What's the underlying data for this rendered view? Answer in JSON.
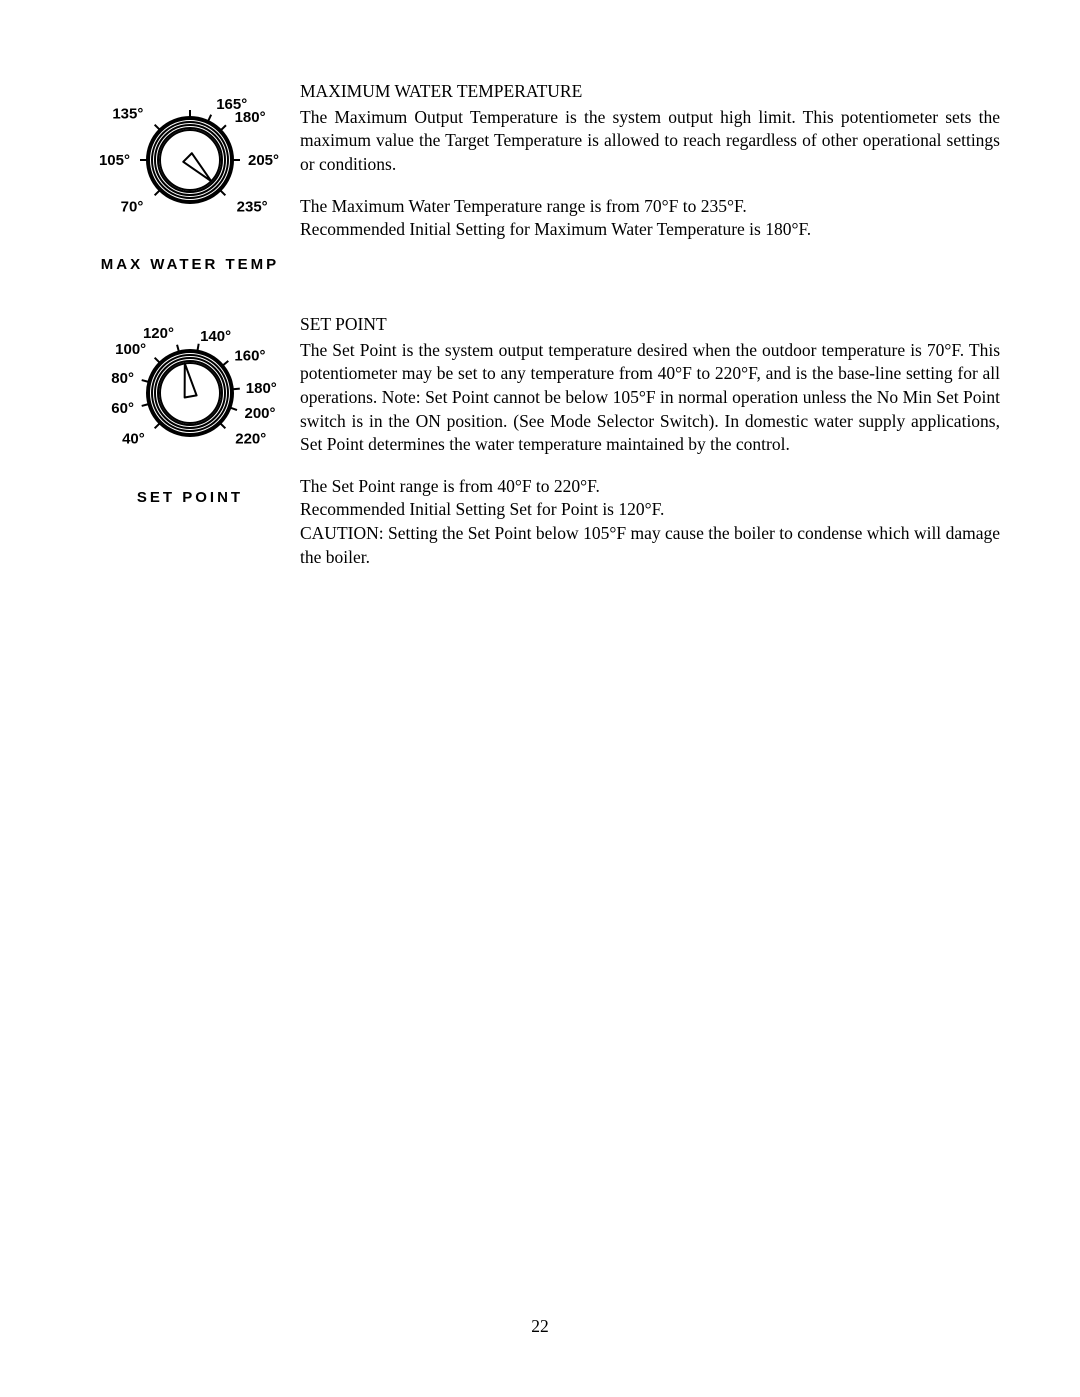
{
  "page_number": "22",
  "dial_style": {
    "outer_radius": 42,
    "ring_radii": [
      42,
      38,
      35,
      32,
      30
    ],
    "ring_stroke": "#000000",
    "ring_strokewidths": [
      4,
      2,
      2,
      2,
      2
    ],
    "tick_inner_r": 43,
    "tick_outer_r": 50,
    "tick_stroke": "#000000",
    "tick_strokewidth": 2,
    "pointer_fill": "#ffffff",
    "pointer_stroke": "#000000",
    "pointer_strokewidth": 2,
    "label_font_size": 15,
    "label_fill": "#000000",
    "caption_font_size": 15
  },
  "sections": [
    {
      "dial": {
        "caption": "MAX WATER TEMP",
        "pointer_angle_deg": -45,
        "min_angle_deg": 225,
        "max_angle_deg": -45,
        "labels": [
          {
            "text": "70°",
            "angle_deg": 225,
            "r": 66,
            "anchor": "end"
          },
          {
            "text": "105°",
            "angle_deg": 180,
            "r": 60,
            "anchor": "end"
          },
          {
            "text": "135°",
            "angle_deg": 135,
            "r": 66,
            "anchor": "end"
          },
          {
            "text": "165°",
            "angle_deg": 65,
            "r": 62,
            "anchor": "start"
          },
          {
            "text": "180°",
            "angle_deg": 44,
            "r": 62,
            "anchor": "start"
          },
          {
            "text": "205°",
            "angle_deg": 0,
            "r": 58,
            "anchor": "start"
          },
          {
            "text": "235°",
            "angle_deg": -45,
            "r": 66,
            "anchor": "start"
          }
        ],
        "ticks_at_deg": [
          225,
          180,
          135,
          90,
          65,
          44,
          0,
          -45
        ]
      },
      "heading": "MAXIMUM WATER TEMPERATURE",
      "paras": [
        {
          "text": "The Maximum Output Temperature is the system output high limit.  This potentiometer sets the maximum value the Target Temperature is allowed to reach regardless of other operational settings or conditions."
        },
        {
          "text": "The Maximum Water Temperature range is from 70°F to 235°F."
        },
        {
          "text": "Recommended Initial Setting for Maximum Water Temperature is 180°F."
        }
      ]
    },
    {
      "dial": {
        "caption": "SET POINT",
        "pointer_angle_deg": 100,
        "min_angle_deg": 225,
        "max_angle_deg": -45,
        "labels": [
          {
            "text": "40°",
            "angle_deg": 225,
            "r": 64,
            "anchor": "end"
          },
          {
            "text": "60°",
            "angle_deg": 195,
            "r": 58,
            "anchor": "end"
          },
          {
            "text": "80°",
            "angle_deg": 165,
            "r": 58,
            "anchor": "end"
          },
          {
            "text": "100°",
            "angle_deg": 135,
            "r": 62,
            "anchor": "end"
          },
          {
            "text": "120°",
            "angle_deg": 105,
            "r": 62,
            "anchor": "end"
          },
          {
            "text": "140°",
            "angle_deg": 80,
            "r": 58,
            "anchor": "start"
          },
          {
            "text": "160°",
            "angle_deg": 40,
            "r": 58,
            "anchor": "start"
          },
          {
            "text": "180°",
            "angle_deg": 5,
            "r": 56,
            "anchor": "start"
          },
          {
            "text": "200°",
            "angle_deg": -20,
            "r": 58,
            "anchor": "start"
          },
          {
            "text": "220°",
            "angle_deg": -45,
            "r": 64,
            "anchor": "start"
          }
        ],
        "ticks_at_deg": [
          225,
          195,
          165,
          135,
          105,
          80,
          40,
          5,
          -20,
          -45
        ]
      },
      "heading": "SET POINT",
      "paras": [
        {
          "text": "The Set Point is the system output temperature desired when the outdoor temperature is 70°F.  This potentiometer may be set to any temperature from 40°F to 220°F, and is the base-line setting for all operations.  Note: Set Point cannot be below 105°F in normal operation unless the No Min Set Point switch is in the ON position.  (See Mode Selector Switch).  In domestic water supply applications, Set Point determines the water temperature maintained by the control."
        },
        {
          "text": "The Set Point range is from 40°F to 220°F."
        },
        {
          "text": "Recommended Initial Setting Set for Point is 120°F."
        },
        {
          "text": "CAUTION: Setting the Set Point below 105°F may cause the boiler to condense which will damage the boiler."
        }
      ]
    }
  ]
}
